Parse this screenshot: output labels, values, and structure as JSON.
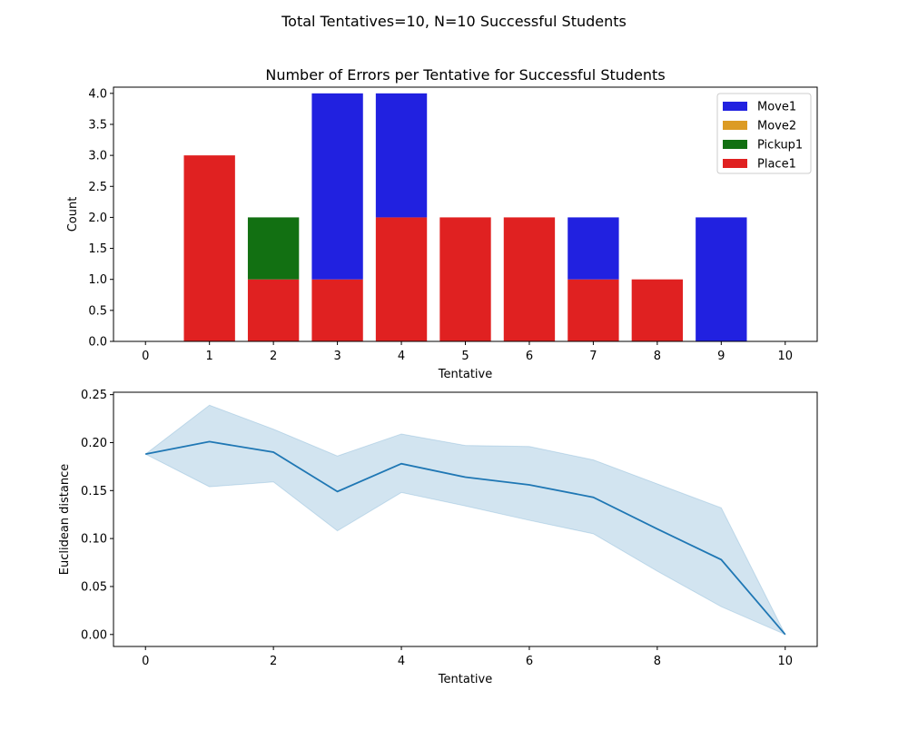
{
  "figure": {
    "suptitle": "Total Tentatives=10, N=10 Successful Students"
  },
  "chart_data": [
    {
      "type": "bar",
      "stacked": true,
      "title": "Number of Errors per Tentative for Successful Students",
      "xlabel": "Tentative",
      "ylabel": "Count",
      "categories": [
        "0",
        "1",
        "2",
        "3",
        "4",
        "5",
        "6",
        "7",
        "8",
        "9",
        "10"
      ],
      "ylim": [
        0,
        4.1
      ],
      "yticks": [
        "0.0",
        "0.5",
        "1.0",
        "1.5",
        "2.0",
        "2.5",
        "3.0",
        "3.5",
        "4.0"
      ],
      "grid": false,
      "legend_position": "top-right",
      "series": [
        {
          "name": "Move1",
          "color": "#2121e0",
          "values": [
            0,
            0,
            0,
            3,
            2,
            0,
            0,
            1,
            0,
            2,
            0
          ]
        },
        {
          "name": "Move2",
          "color": "#dc9b24",
          "values": [
            0,
            0,
            0,
            0,
            0,
            0,
            0,
            0,
            0,
            0,
            0
          ]
        },
        {
          "name": "Pickup1",
          "color": "#127012",
          "values": [
            0,
            0,
            1,
            0,
            0,
            0,
            0,
            0,
            0,
            0,
            0
          ]
        },
        {
          "name": "Place1",
          "color": "#e02121",
          "values": [
            0,
            3,
            1,
            1,
            2,
            2,
            2,
            1,
            1,
            0,
            0
          ]
        }
      ],
      "stack_order": [
        "Place1",
        "Pickup1",
        "Move2",
        "Move1"
      ]
    },
    {
      "type": "line",
      "title": "",
      "xlabel": "Tentative",
      "ylabel": "Euclidean distance",
      "xlim": [
        -0.5,
        10.5
      ],
      "ylim": [
        -0.0125,
        0.2525
      ],
      "xticks": [
        "0",
        "2",
        "4",
        "6",
        "8",
        "10"
      ],
      "yticks": [
        "0.00",
        "0.05",
        "0.10",
        "0.15",
        "0.20",
        "0.25"
      ],
      "grid": false,
      "line_color": "#1f77b4",
      "band_color": "#1f77b4",
      "x": [
        0,
        1,
        2,
        3,
        4,
        5,
        6,
        7,
        8,
        9,
        10
      ],
      "y": [
        0.188,
        0.201,
        0.19,
        0.149,
        0.178,
        0.164,
        0.156,
        0.143,
        0.11,
        0.078,
        0.0
      ],
      "upper": [
        0.188,
        0.239,
        0.214,
        0.186,
        0.209,
        0.197,
        0.196,
        0.182,
        0.157,
        0.132,
        0.0
      ],
      "lower": [
        0.188,
        0.154,
        0.159,
        0.108,
        0.148,
        0.134,
        0.119,
        0.105,
        0.066,
        0.029,
        0.0
      ]
    }
  ]
}
